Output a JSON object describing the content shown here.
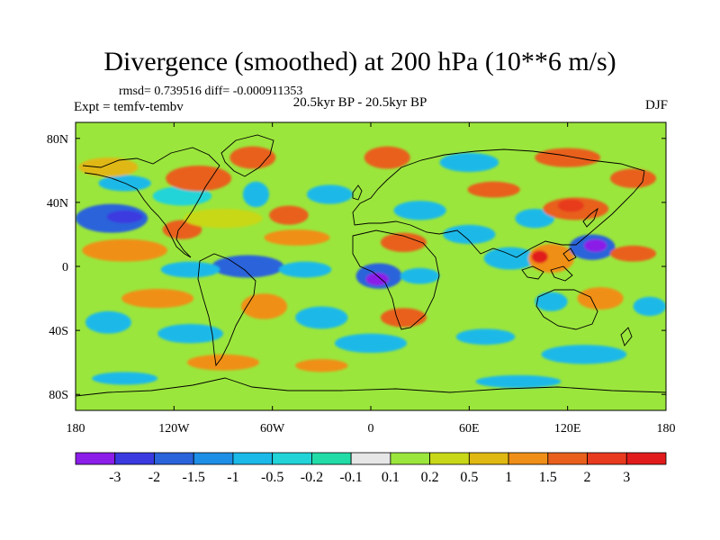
{
  "title": "Divergence (smoothed) at 200 hPa (10**6 m/s)",
  "stats": "rmsd= 0.739516 diff= -0.000911353",
  "experiment": "Expt = temfv-tembv",
  "period": "20.5kyr BP - 20.5kyr BP",
  "season": "DJF",
  "y_ticks": [
    "80N",
    "40N",
    "0",
    "40S",
    "80S"
  ],
  "x_ticks": [
    "180",
    "120W",
    "60W",
    "0",
    "60E",
    "120E",
    "180"
  ],
  "colorbar": {
    "labels": [
      "-3",
      "-2",
      "-1.5",
      "-1",
      "-0.5",
      "-0.2",
      "-0.1",
      "0.1",
      "0.2",
      "0.5",
      "1",
      "1.5",
      "2",
      "3"
    ],
    "colors": [
      "#8b1ee8",
      "#3a3ae0",
      "#2a63da",
      "#1e8fe6",
      "#1ab9e8",
      "#22d4d8",
      "#22dca8",
      "#e6e6e6",
      "#9be63c",
      "#c8d818",
      "#e0b812",
      "#f08f18",
      "#e8601c",
      "#e83a1e",
      "#e11b1b"
    ]
  },
  "field_blobs": [
    {
      "lon": -158,
      "lat": 30,
      "rx": 22,
      "ry": 9,
      "c": 2
    },
    {
      "lon": -150,
      "lat": 31,
      "rx": 11,
      "ry": 4,
      "c": 1
    },
    {
      "lon": -150,
      "lat": 52,
      "rx": 16,
      "ry": 5,
      "c": 4
    },
    {
      "lon": -115,
      "lat": 44,
      "rx": 18,
      "ry": 6,
      "c": 5
    },
    {
      "lon": -150,
      "lat": 10,
      "rx": 26,
      "ry": 7,
      "c": 11
    },
    {
      "lon": -115,
      "lat": 23,
      "rx": 12,
      "ry": 6,
      "c": 12
    },
    {
      "lon": -160,
      "lat": 62,
      "rx": 18,
      "ry": 6,
      "c": 10
    },
    {
      "lon": -105,
      "lat": 55,
      "rx": 20,
      "ry": 8,
      "c": 12
    },
    {
      "lon": -72,
      "lat": 68,
      "rx": 14,
      "ry": 7,
      "c": 12
    },
    {
      "lon": -90,
      "lat": 30,
      "rx": 24,
      "ry": 6,
      "c": 9
    },
    {
      "lon": -70,
      "lat": 45,
      "rx": 8,
      "ry": 8,
      "c": 4
    },
    {
      "lon": -50,
      "lat": 32,
      "rx": 12,
      "ry": 6,
      "c": 12
    },
    {
      "lon": -45,
      "lat": 18,
      "rx": 20,
      "ry": 5,
      "c": 11
    },
    {
      "lon": -75,
      "lat": 0,
      "rx": 22,
      "ry": 7,
      "c": 2
    },
    {
      "lon": -110,
      "lat": -2,
      "rx": 18,
      "ry": 5,
      "c": 4
    },
    {
      "lon": -40,
      "lat": -2,
      "rx": 16,
      "ry": 5,
      "c": 4
    },
    {
      "lon": 5,
      "lat": -6,
      "rx": 14,
      "ry": 8,
      "c": 2
    },
    {
      "lon": 4,
      "lat": -8,
      "rx": 7,
      "ry": 4,
      "c": 0
    },
    {
      "lon": 30,
      "lat": -6,
      "rx": 12,
      "ry": 5,
      "c": 4
    },
    {
      "lon": -130,
      "lat": -20,
      "rx": 22,
      "ry": 6,
      "c": 11
    },
    {
      "lon": -65,
      "lat": -25,
      "rx": 14,
      "ry": 8,
      "c": 11
    },
    {
      "lon": -30,
      "lat": -32,
      "rx": 16,
      "ry": 7,
      "c": 4
    },
    {
      "lon": 20,
      "lat": -32,
      "rx": 14,
      "ry": 6,
      "c": 12
    },
    {
      "lon": -160,
      "lat": -35,
      "rx": 14,
      "ry": 7,
      "c": 4
    },
    {
      "lon": -110,
      "lat": -42,
      "rx": 20,
      "ry": 6,
      "c": 4
    },
    {
      "lon": 0,
      "lat": -48,
      "rx": 22,
      "ry": 6,
      "c": 4
    },
    {
      "lon": 70,
      "lat": -44,
      "rx": 18,
      "ry": 5,
      "c": 4
    },
    {
      "lon": 130,
      "lat": -55,
      "rx": 26,
      "ry": 6,
      "c": 4
    },
    {
      "lon": -90,
      "lat": -60,
      "rx": 22,
      "ry": 5,
      "c": 11
    },
    {
      "lon": -30,
      "lat": -62,
      "rx": 16,
      "ry": 4,
      "c": 11
    },
    {
      "lon": -150,
      "lat": -70,
      "rx": 20,
      "ry": 4,
      "c": 4
    },
    {
      "lon": 90,
      "lat": -72,
      "rx": 26,
      "ry": 4,
      "c": 4
    },
    {
      "lon": 10,
      "lat": 68,
      "rx": 14,
      "ry": 7,
      "c": 12
    },
    {
      "lon": 60,
      "lat": 65,
      "rx": 18,
      "ry": 6,
      "c": 4
    },
    {
      "lon": 120,
      "lat": 68,
      "rx": 20,
      "ry": 6,
      "c": 12
    },
    {
      "lon": 160,
      "lat": 55,
      "rx": 14,
      "ry": 6,
      "c": 12
    },
    {
      "lon": -25,
      "lat": 45,
      "rx": 14,
      "ry": 6,
      "c": 4
    },
    {
      "lon": 30,
      "lat": 35,
      "rx": 16,
      "ry": 6,
      "c": 4
    },
    {
      "lon": 20,
      "lat": 15,
      "rx": 14,
      "ry": 6,
      "c": 12
    },
    {
      "lon": 60,
      "lat": 20,
      "rx": 16,
      "ry": 6,
      "c": 4
    },
    {
      "lon": 75,
      "lat": 48,
      "rx": 16,
      "ry": 5,
      "c": 12
    },
    {
      "lon": 100,
      "lat": 30,
      "rx": 12,
      "ry": 6,
      "c": 4
    },
    {
      "lon": 125,
      "lat": 36,
      "rx": 20,
      "ry": 7,
      "c": 12
    },
    {
      "lon": 122,
      "lat": 38,
      "rx": 8,
      "ry": 4,
      "c": 13
    },
    {
      "lon": 85,
      "lat": 5,
      "rx": 16,
      "ry": 7,
      "c": 4
    },
    {
      "lon": 110,
      "lat": 5,
      "rx": 14,
      "ry": 9,
      "c": 11
    },
    {
      "lon": 103,
      "lat": 6,
      "rx": 5,
      "ry": 4,
      "c": 14
    },
    {
      "lon": 135,
      "lat": 12,
      "rx": 14,
      "ry": 8,
      "c": 2
    },
    {
      "lon": 137,
      "lat": 13,
      "rx": 7,
      "ry": 4,
      "c": 0
    },
    {
      "lon": 160,
      "lat": 8,
      "rx": 14,
      "ry": 5,
      "c": 12
    },
    {
      "lon": 140,
      "lat": -20,
      "rx": 14,
      "ry": 7,
      "c": 11
    },
    {
      "lon": 170,
      "lat": -25,
      "rx": 10,
      "ry": 6,
      "c": 4
    },
    {
      "lon": 110,
      "lat": -22,
      "rx": 10,
      "ry": 6,
      "c": 4
    }
  ]
}
